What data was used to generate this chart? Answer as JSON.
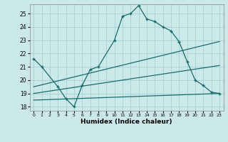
{
  "background_color": "#cce9e9",
  "grid_color": "#aad4d4",
  "line_color": "#1a6b6b",
  "xlabel": "Humidex (Indice chaleur)",
  "ylim": [
    17.7,
    25.7
  ],
  "xlim": [
    -0.5,
    23.5
  ],
  "yticks": [
    18,
    19,
    20,
    21,
    22,
    23,
    24,
    25
  ],
  "xticks": [
    0,
    1,
    2,
    3,
    4,
    5,
    6,
    7,
    8,
    9,
    10,
    11,
    12,
    13,
    14,
    15,
    16,
    17,
    18,
    19,
    20,
    21,
    22,
    23
  ],
  "series": [
    {
      "x": [
        0,
        1,
        3,
        4,
        5,
        6,
        7,
        8,
        10,
        11,
        12,
        13,
        14,
        15,
        16,
        17,
        18,
        19,
        20,
        21,
        22,
        23
      ],
      "y": [
        21.6,
        21.0,
        19.5,
        18.6,
        18.0,
        19.6,
        20.8,
        21.0,
        23.0,
        24.8,
        25.0,
        25.6,
        24.6,
        24.4,
        24.0,
        23.7,
        22.9,
        21.4,
        20.0,
        19.6,
        19.1,
        19.0
      ]
    },
    {
      "x": [
        0,
        23
      ],
      "y": [
        19.5,
        22.9
      ]
    },
    {
      "x": [
        0,
        23
      ],
      "y": [
        19.0,
        21.1
      ]
    },
    {
      "x": [
        0,
        23
      ],
      "y": [
        18.5,
        19.0
      ]
    }
  ]
}
